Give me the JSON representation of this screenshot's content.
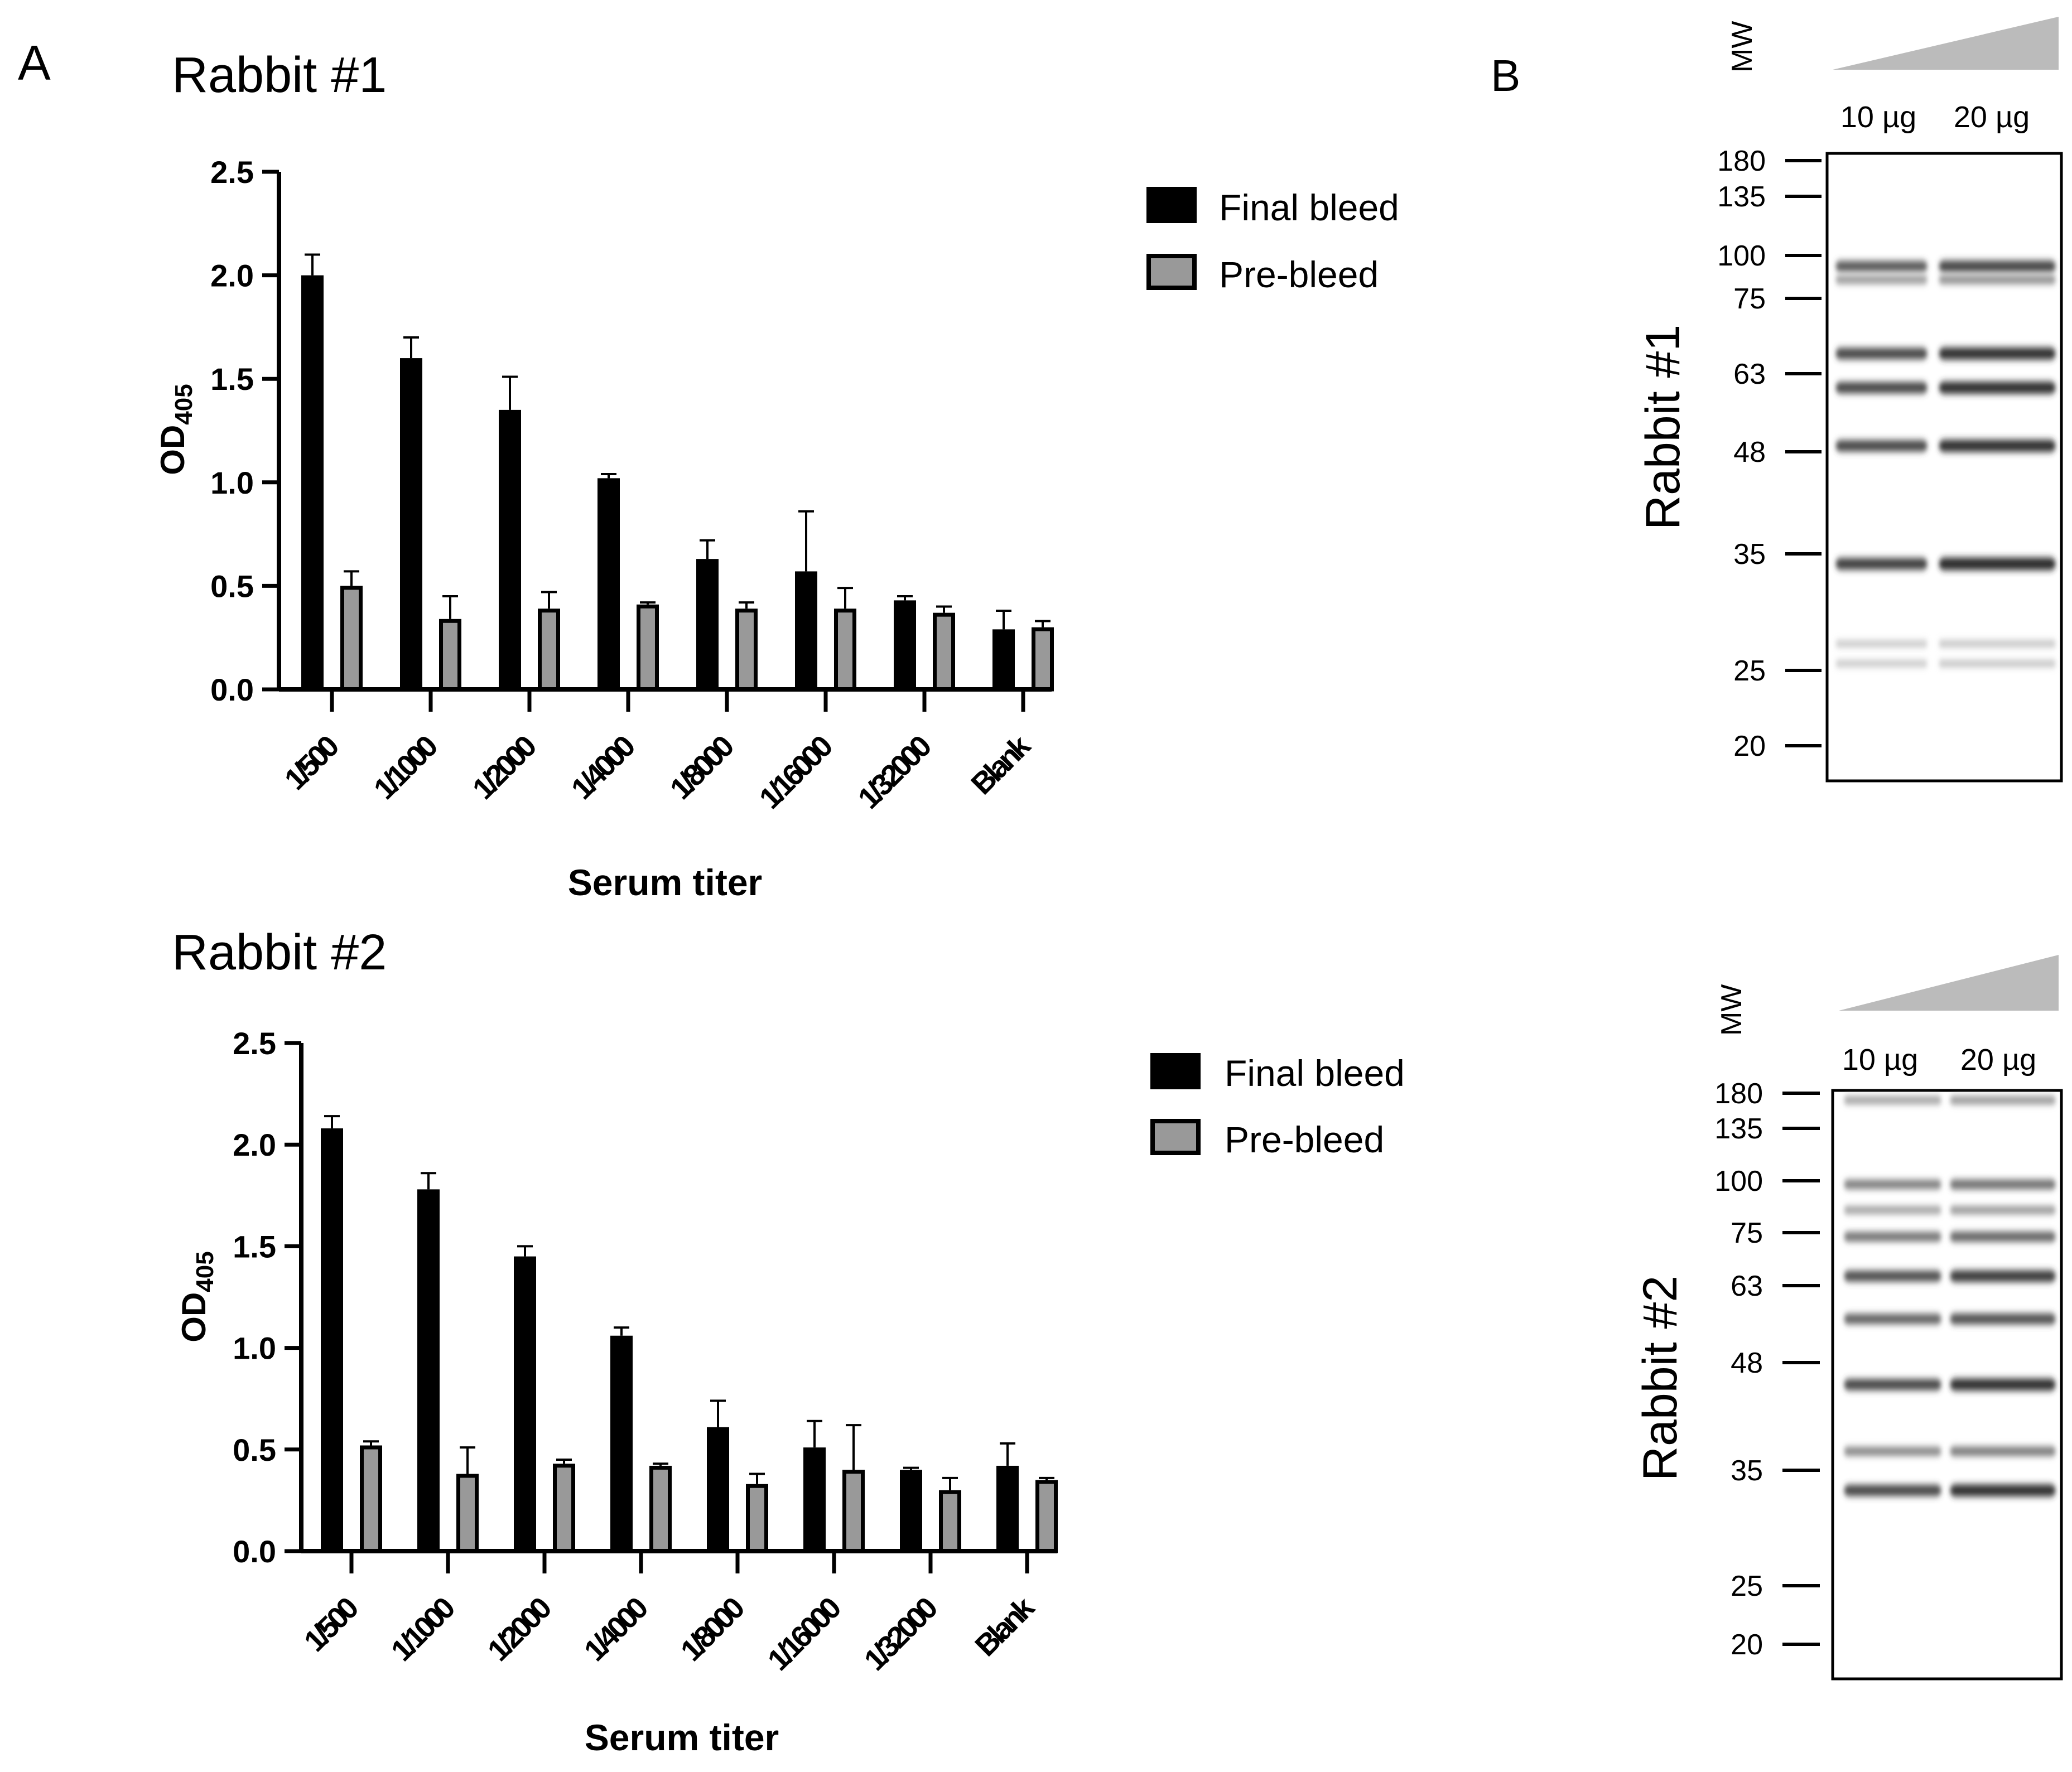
{
  "panel_labels": {
    "a": "A",
    "b": "B"
  },
  "colors": {
    "final": "#000000",
    "pre": "#999999",
    "wedge": "#bbbbbb",
    "band": "#1a1a1a"
  },
  "chart_data": [
    {
      "type": "bar",
      "title": "Rabbit #1",
      "xlabel": "Serum titer",
      "ylabel_main": "OD",
      "ylabel_sub": "405",
      "ylim": [
        0,
        2.5
      ],
      "yticks": [
        "0.0",
        "0.5",
        "1.0",
        "1.5",
        "2.0",
        "2.5"
      ],
      "categories": [
        "1/500",
        "1/1000",
        "1/2000",
        "1/4000",
        "1/8000",
        "1/16000",
        "1/32000",
        "Blank"
      ],
      "series": [
        {
          "name": "Final bleed",
          "values": [
            2.0,
            1.6,
            1.35,
            1.02,
            0.63,
            0.57,
            0.43,
            0.29
          ],
          "errors": [
            0.1,
            0.1,
            0.16,
            0.02,
            0.09,
            0.29,
            0.02,
            0.09
          ]
        },
        {
          "name": "Pre-bleed",
          "values": [
            0.5,
            0.34,
            0.39,
            0.41,
            0.39,
            0.39,
            0.37,
            0.3
          ],
          "errors": [
            0.07,
            0.11,
            0.08,
            0.01,
            0.03,
            0.1,
            0.03,
            0.03
          ]
        }
      ]
    },
    {
      "type": "bar",
      "title": "Rabbit #2",
      "xlabel": "Serum titer",
      "ylabel_main": "OD",
      "ylabel_sub": "405",
      "ylim": [
        0,
        2.5
      ],
      "yticks": [
        "0.0",
        "0.5",
        "1.0",
        "1.5",
        "2.0",
        "2.5"
      ],
      "categories": [
        "1/500",
        "1/1000",
        "1/2000",
        "1/4000",
        "1/8000",
        "1/16000",
        "1/32000",
        "Blank"
      ],
      "series": [
        {
          "name": "Final bleed",
          "values": [
            2.08,
            1.78,
            1.45,
            1.06,
            0.61,
            0.51,
            0.4,
            0.42
          ],
          "errors": [
            0.06,
            0.08,
            0.05,
            0.04,
            0.13,
            0.13,
            0.01,
            0.11
          ]
        },
        {
          "name": "Pre-bleed",
          "values": [
            0.52,
            0.38,
            0.43,
            0.42,
            0.33,
            0.4,
            0.3,
            0.35
          ],
          "errors": [
            0.02,
            0.13,
            0.02,
            0.01,
            0.05,
            0.22,
            0.06,
            0.01
          ]
        }
      ]
    }
  ],
  "blots": [
    {
      "side_label": "Rabbit #1",
      "mw_label": "MW",
      "lanes": [
        "10 µg",
        "20 µg"
      ],
      "markers": [
        "180",
        "135",
        "100",
        "75",
        "63",
        "48",
        "35",
        "25",
        "20"
      ],
      "bands": [
        {
          "kda": 93,
          "strength": 0.75
        },
        {
          "kda": 85,
          "strength": 0.4
        },
        {
          "kda": 66,
          "strength": 0.85
        },
        {
          "kda": 60,
          "strength": 0.85
        },
        {
          "kda": 49,
          "strength": 0.85
        },
        {
          "kda": 34,
          "strength": 0.9
        },
        {
          "kda": 27,
          "strength": 0.15
        },
        {
          "kda": 25.5,
          "strength": 0.15
        }
      ]
    },
    {
      "side_label": "Rabbit #2",
      "mw_label": "MW",
      "lanes": [
        "10 µg",
        "20 µg"
      ],
      "markers": [
        "180",
        "135",
        "100",
        "75",
        "63",
        "48",
        "35",
        "25",
        "20"
      ],
      "bands": [
        {
          "kda": 170,
          "strength": 0.35
        },
        {
          "kda": 98,
          "strength": 0.55
        },
        {
          "kda": 85,
          "strength": 0.35
        },
        {
          "kda": 74,
          "strength": 0.6
        },
        {
          "kda": 65,
          "strength": 0.8
        },
        {
          "kda": 56,
          "strength": 0.7
        },
        {
          "kda": 45,
          "strength": 0.85
        },
        {
          "kda": 37,
          "strength": 0.5
        },
        {
          "kda": 33,
          "strength": 0.85
        }
      ]
    }
  ]
}
